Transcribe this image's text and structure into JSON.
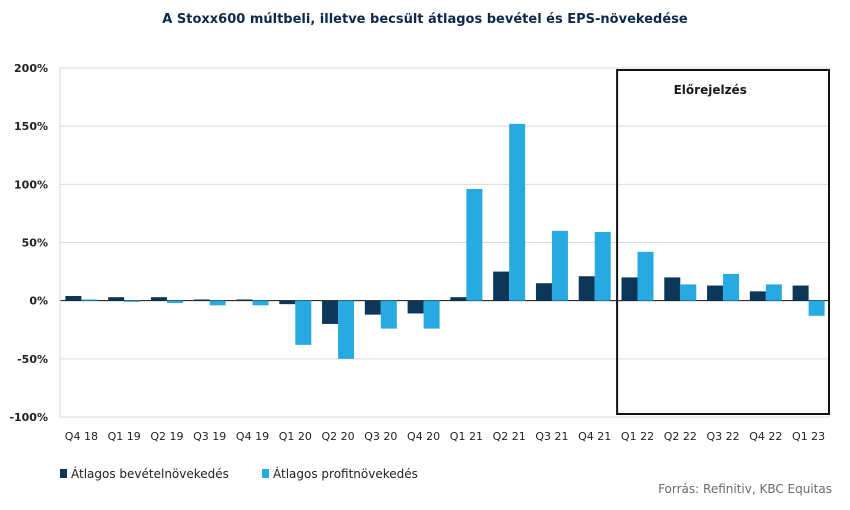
{
  "chart_data": {
    "type": "bar",
    "title": "A Stoxx600  múltbeli,  illetve  becsült  átlagos bevétel  és EPS-növekedése",
    "categories": [
      "Q4 18",
      "Q1 19",
      "Q2 19",
      "Q3 19",
      "Q4 19",
      "Q1 20",
      "Q2 20",
      "Q3 20",
      "Q4 20",
      "Q1 21",
      "Q2 21",
      "Q3 21",
      "Q4 21",
      "Q1 22",
      "Q2 22",
      "Q3 22",
      "Q4 22",
      "Q1 23"
    ],
    "series": [
      {
        "name": "Átlagos bevételnövekedés",
        "color": "#0e3659",
        "values": [
          4,
          3,
          3,
          1,
          1,
          -3,
          -20,
          -12,
          -11,
          3,
          25,
          15,
          21,
          20,
          20,
          13,
          8,
          13
        ]
      },
      {
        "name": "Átlagos profitnövekedés",
        "color": "#27a9e1",
        "values": [
          1,
          -1,
          -2,
          -4,
          -4,
          -38,
          -50,
          -24,
          -24,
          96,
          152,
          60,
          59,
          42,
          14,
          23,
          14,
          -13
        ]
      }
    ],
    "ylim": [
      -100,
      200
    ],
    "yticks": [
      -100,
      -50,
      0,
      50,
      100,
      150,
      200
    ],
    "ytick_labels": [
      "-100%",
      "-50%",
      "0%",
      "50%",
      "100%",
      "150%",
      "200%"
    ],
    "grid": true,
    "legend_position": "bottom-left",
    "annotation": {
      "label": "Előrejelzés",
      "from_category": "Q1 22",
      "to_category": "Q1 23"
    },
    "source": "Forrás: Refinitiv, KBC Equitas"
  }
}
